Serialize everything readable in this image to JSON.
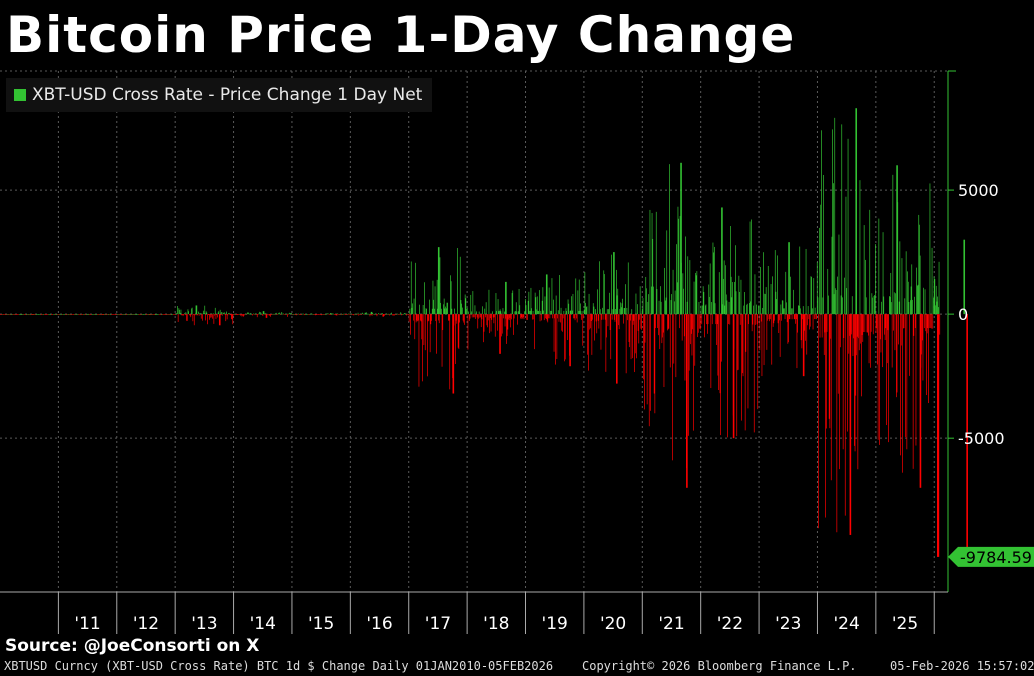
{
  "title": "Bitcoin Price 1-Day Change",
  "legend": {
    "label": "XBT-USD Cross Rate - Price Change 1 Day Net",
    "color": "#33c233"
  },
  "source": "Source:  @JoeConsorti on X",
  "footer": {
    "left": "XBTUSD Curncy (XBT-USD Cross Rate) BTC 1d $ Change Daily 01JAN2010-05FEB2026",
    "center": "Copyright© 2026 Bloomberg Finance L.P.",
    "right": "05-Feb-2026 15:57:02"
  },
  "colors": {
    "positive": "#33c233",
    "negative": "#ff0000",
    "axis": "#33c233",
    "grid": "#5a5a5a",
    "background": "#000000"
  },
  "chart_data": {
    "type": "bar",
    "title": "Bitcoin Price 1-Day Change",
    "series_name": "XBT-USD Cross Rate - Price Change 1 Day Net",
    "y_axis_side": "right",
    "ylim": [
      -11200,
      9800
    ],
    "y_ticks": [
      5000,
      0,
      -5000
    ],
    "y_tick_labels": [
      "5000",
      "0",
      "-5000"
    ],
    "x_tick_labels": [
      "'11",
      "'12",
      "'13",
      "'14",
      "'15",
      "'16",
      "'17",
      "'18",
      "'19",
      "'20",
      "'21",
      "'22",
      "'23",
      "'24",
      "'25"
    ],
    "last_value_label": "-9784.59",
    "last_value": -9784.59,
    "grid": true,
    "legend_position": "top-left",
    "bars_by_year": [
      {
        "year": 2010,
        "max_up": 5,
        "max_down": -5
      },
      {
        "year": 2011,
        "max_up": 8,
        "max_down": -10
      },
      {
        "year": 2012,
        "max_up": 5,
        "max_down": -5
      },
      {
        "year": 2013,
        "max_up": 350,
        "max_down": -450
      },
      {
        "year": 2014,
        "max_up": 120,
        "max_down": -150
      },
      {
        "year": 2015,
        "max_up": 40,
        "max_down": -50
      },
      {
        "year": 2016,
        "max_up": 90,
        "max_down": -100
      },
      {
        "year": 2017,
        "max_up": 2700,
        "max_down": -3200
      },
      {
        "year": 2018,
        "max_up": 1300,
        "max_down": -1600
      },
      {
        "year": 2019,
        "max_up": 1600,
        "max_down": -2100
      },
      {
        "year": 2020,
        "max_up": 2500,
        "max_down": -2800
      },
      {
        "year": 2021,
        "max_up": 6100,
        "max_down": -7000
      },
      {
        "year": 2022,
        "max_up": 4300,
        "max_down": -5000
      },
      {
        "year": 2023,
        "max_up": 2900,
        "max_down": -2500
      },
      {
        "year": 2024,
        "max_up": 8300,
        "max_down": -8900
      },
      {
        "year": 2025,
        "max_up": 6000,
        "max_down": -7000
      },
      {
        "year": 2026,
        "max_up": 3000,
        "max_down": -9784.59
      }
    ]
  }
}
